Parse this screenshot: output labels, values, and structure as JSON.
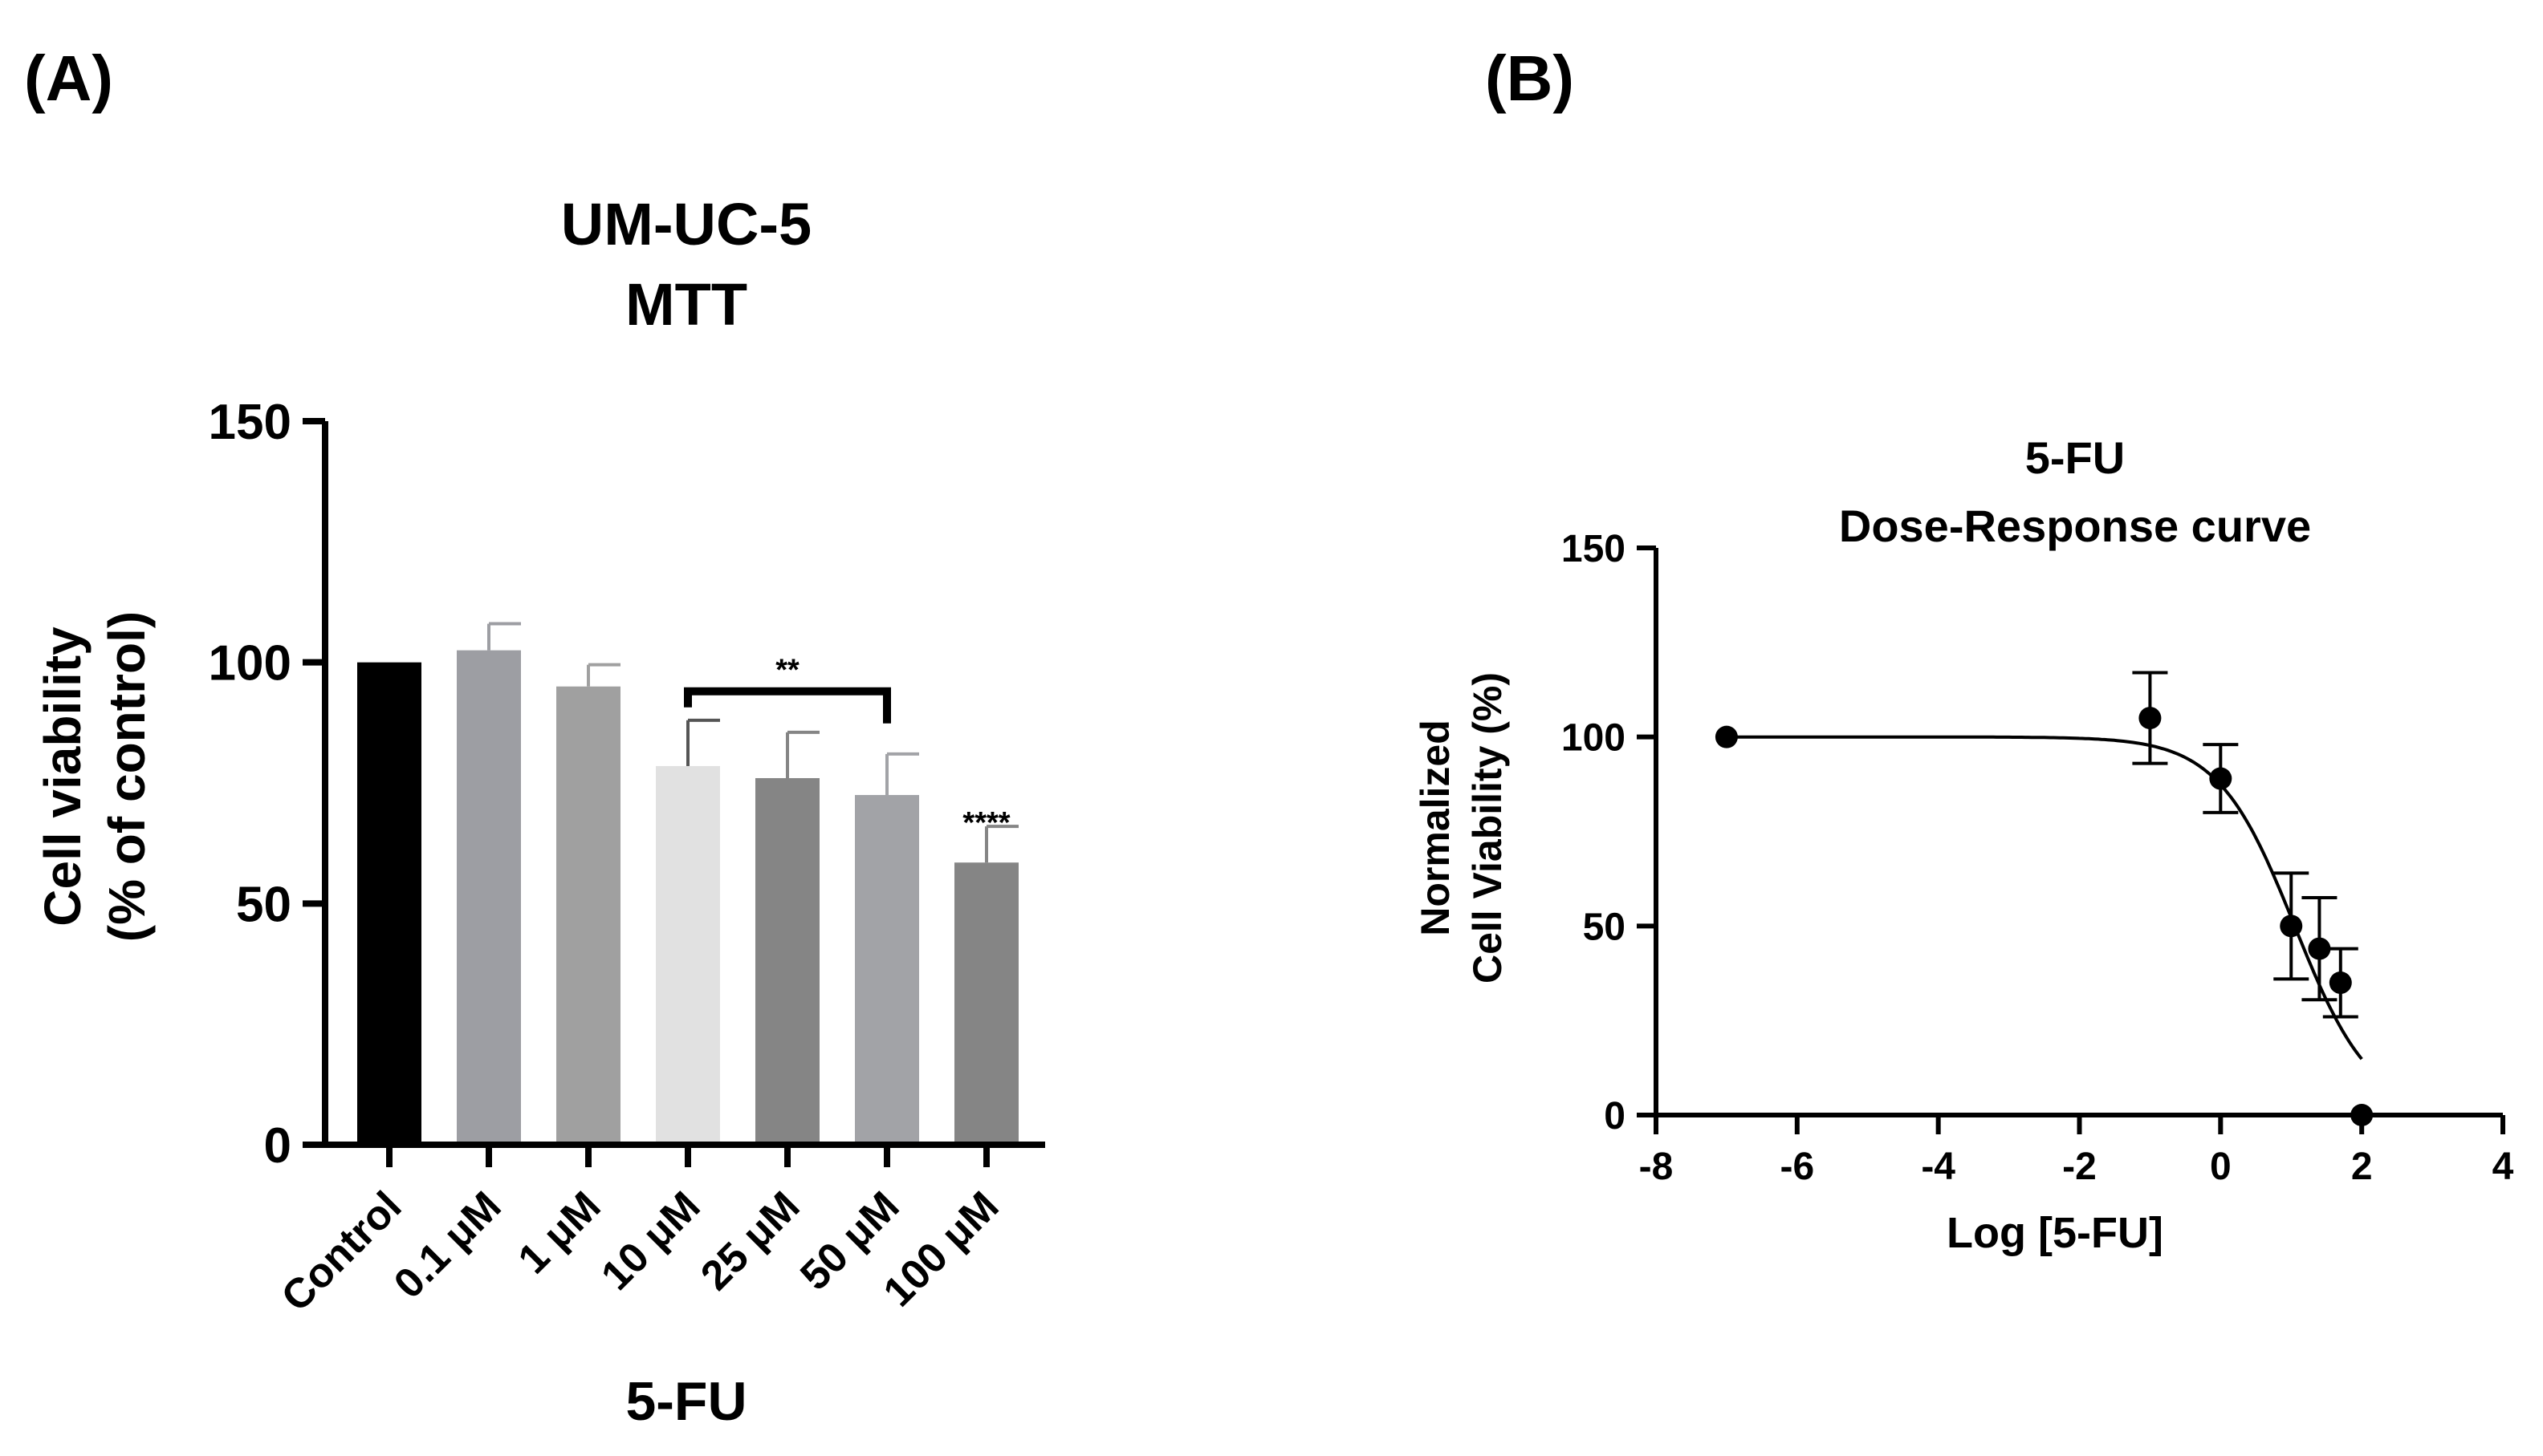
{
  "panels": {
    "a_label": "(A)",
    "b_label": "(B)"
  },
  "chart_data": [
    {
      "type": "bar",
      "title": "UM-UC-5",
      "subtitle": "MTT",
      "xlabel": "5-FU",
      "ylabel": "Cell viability",
      "ylabel2": "(% of control)",
      "ylim": [
        0,
        150
      ],
      "yticks": [
        0,
        50,
        100,
        150
      ],
      "categories": [
        "Control",
        "0.1 μM",
        "1 μM",
        "10 μM",
        "25 μM",
        "50 μM",
        "100 μM"
      ],
      "values": [
        100,
        102.5,
        95,
        78.5,
        76,
        72.5,
        58.5
      ],
      "errors": [
        0,
        5.5,
        4.5,
        9.5,
        9.5,
        8.5,
        7.5
      ],
      "colors": [
        "#000000",
        "#9d9ea3",
        "#a0a0a0",
        "#e1e1e1",
        "#858585",
        "#a2a3a7",
        "#858585"
      ],
      "annotations": [
        {
          "text": "**",
          "from_category": "10 μM",
          "to_category": "50 μM",
          "y": 94
        },
        {
          "text": "****",
          "category": "100 μM",
          "y": 67
        }
      ]
    },
    {
      "type": "scatter",
      "title": "5-FU",
      "subtitle": "Dose-Response curve",
      "xlabel": "Log [5-FU]",
      "ylabel": "Normalized",
      "ylabel2": "Cell Viability (%)",
      "xlim": [
        -8,
        4
      ],
      "ylim": [
        0,
        150
      ],
      "xticks": [
        -8,
        -6,
        -4,
        -2,
        0,
        2,
        4
      ],
      "yticks": [
        0,
        50,
        100,
        150
      ],
      "points": [
        {
          "x": -7,
          "y": 100,
          "err": 0
        },
        {
          "x": -1,
          "y": 105,
          "err": 12
        },
        {
          "x": 0,
          "y": 89,
          "err": 9
        },
        {
          "x": 1,
          "y": 50,
          "err": 14
        },
        {
          "x": 1.4,
          "y": 44,
          "err": 13.5
        },
        {
          "x": 1.7,
          "y": 35,
          "err": 9
        },
        {
          "x": 2,
          "y": 0,
          "err": 0
        }
      ],
      "fit": {
        "top": 100,
        "bottom": 0,
        "logIC50": 1.05,
        "hill": 0.8
      }
    }
  ]
}
